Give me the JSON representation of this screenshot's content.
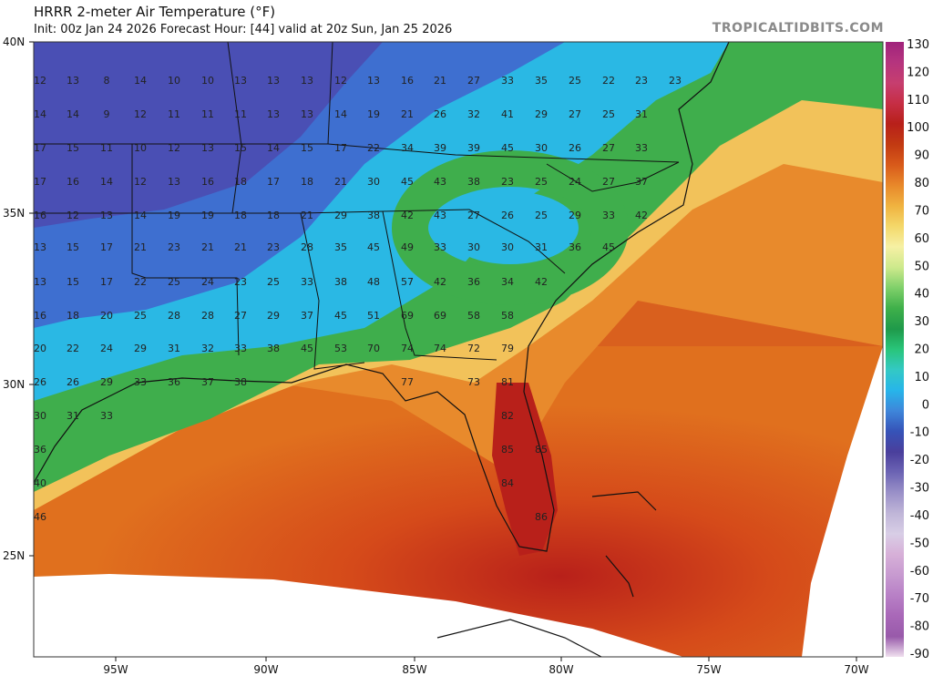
{
  "header": {
    "title": "HRRR 2-meter Air Temperature (°F)",
    "subtitle": "Init: 00z Jan 24 2026   Forecast Hour: [44]   valid at 20z Sun, Jan 25 2026",
    "brand": "TROPICALTIDBITS.COM"
  },
  "axes": {
    "lat_labels": [
      "40N",
      "35N",
      "30N",
      "25N"
    ],
    "lon_labels": [
      "95W",
      "90W",
      "85W",
      "80W",
      "75W",
      "70W"
    ]
  },
  "colorbar": {
    "labels": [
      "130",
      "120",
      "110",
      "100",
      "90",
      "80",
      "70",
      "60",
      "50",
      "40",
      "30",
      "20",
      "10",
      "0",
      "-10",
      "-20",
      "-30",
      "-40",
      "-50",
      "-60",
      "-70",
      "-80",
      "-90"
    ],
    "stops": [
      "#a0237c",
      "#b5347e",
      "#c63e6f",
      "#c62e45",
      "#b8201a",
      "#c23a12",
      "#d85a1a",
      "#e8882a",
      "#f0b340",
      "#f4d86a",
      "#f6f0a4",
      "#cde98c",
      "#7fd06a",
      "#3fb04a",
      "#1f9a4a",
      "#29c57a",
      "#33c9c4",
      "#27b5ea",
      "#3e86da",
      "#3653b8",
      "#4a3f9c",
      "#6c64b4",
      "#9a90c8",
      "#c0b6d8",
      "#d8cee6",
      "#d7b0d8",
      "#c79ad0",
      "#b880c6",
      "#a968b8",
      "#985aaa",
      "#f0e0ef"
    ]
  },
  "station_values": [
    {
      "v": "12"
    },
    {
      "v": "13"
    },
    {
      "v": "8"
    },
    {
      "v": "14"
    },
    {
      "v": "10"
    },
    {
      "v": "10"
    },
    {
      "v": "13"
    },
    {
      "v": "13"
    },
    {
      "v": "13"
    },
    {
      "v": "12"
    },
    {
      "v": "13"
    },
    {
      "v": "16"
    },
    {
      "v": "21"
    },
    {
      "v": "27"
    },
    {
      "v": "33"
    },
    {
      "v": "35"
    },
    {
      "v": "25"
    },
    {
      "v": "22"
    },
    {
      "v": "23"
    },
    {
      "v": "23"
    },
    {
      "v": "14"
    },
    {
      "v": "14"
    },
    {
      "v": "9"
    },
    {
      "v": "12"
    },
    {
      "v": "11"
    },
    {
      "v": "11"
    },
    {
      "v": "11"
    },
    {
      "v": "13"
    },
    {
      "v": "13"
    },
    {
      "v": "14"
    },
    {
      "v": "19"
    },
    {
      "v": "21"
    },
    {
      "v": "26"
    },
    {
      "v": "32"
    },
    {
      "v": "41"
    },
    {
      "v": "29"
    },
    {
      "v": "27"
    },
    {
      "v": "25"
    },
    {
      "v": "31"
    },
    {
      "v": "17"
    },
    {
      "v": "15"
    },
    {
      "v": "11"
    },
    {
      "v": "10"
    },
    {
      "v": "12"
    },
    {
      "v": "13"
    },
    {
      "v": "15"
    },
    {
      "v": "14"
    },
    {
      "v": "15"
    },
    {
      "v": "17"
    },
    {
      "v": "22"
    },
    {
      "v": "34"
    },
    {
      "v": "39"
    },
    {
      "v": "39"
    },
    {
      "v": "45"
    },
    {
      "v": "30"
    },
    {
      "v": "26"
    },
    {
      "v": "27"
    },
    {
      "v": "33"
    },
    {
      "v": "17"
    },
    {
      "v": "16"
    },
    {
      "v": "14"
    },
    {
      "v": "12"
    },
    {
      "v": "13"
    },
    {
      "v": "16"
    },
    {
      "v": "18"
    },
    {
      "v": "17"
    },
    {
      "v": "18"
    },
    {
      "v": "21"
    },
    {
      "v": "30"
    },
    {
      "v": "45"
    },
    {
      "v": "43"
    },
    {
      "v": "38"
    },
    {
      "v": "23"
    },
    {
      "v": "25"
    },
    {
      "v": "24"
    },
    {
      "v": "27"
    },
    {
      "v": "37"
    },
    {
      "v": "16"
    },
    {
      "v": "12"
    },
    {
      "v": "13"
    },
    {
      "v": "14"
    },
    {
      "v": "19"
    },
    {
      "v": "19"
    },
    {
      "v": "18"
    },
    {
      "v": "18"
    },
    {
      "v": "21"
    },
    {
      "v": "29"
    },
    {
      "v": "38"
    },
    {
      "v": "42"
    },
    {
      "v": "43"
    },
    {
      "v": "27"
    },
    {
      "v": "26"
    },
    {
      "v": "25"
    },
    {
      "v": "29"
    },
    {
      "v": "33"
    },
    {
      "v": "42"
    },
    {
      "v": "13"
    },
    {
      "v": "15"
    },
    {
      "v": "17"
    },
    {
      "v": "21"
    },
    {
      "v": "23"
    },
    {
      "v": "21"
    },
    {
      "v": "21"
    },
    {
      "v": "23"
    },
    {
      "v": "28"
    },
    {
      "v": "35"
    },
    {
      "v": "45"
    },
    {
      "v": "49"
    },
    {
      "v": "33"
    },
    {
      "v": "30"
    },
    {
      "v": "30"
    },
    {
      "v": "31"
    },
    {
      "v": "36"
    },
    {
      "v": "45"
    },
    {
      "v": "13"
    },
    {
      "v": "15"
    },
    {
      "v": "17"
    },
    {
      "v": "22"
    },
    {
      "v": "25"
    },
    {
      "v": "24"
    },
    {
      "v": "23"
    },
    {
      "v": "25"
    },
    {
      "v": "33"
    },
    {
      "v": "38"
    },
    {
      "v": "48"
    },
    {
      "v": "57"
    },
    {
      "v": "42"
    },
    {
      "v": "36"
    },
    {
      "v": "34"
    },
    {
      "v": "42"
    },
    {
      "v": "16"
    },
    {
      "v": "18"
    },
    {
      "v": "20"
    },
    {
      "v": "25"
    },
    {
      "v": "28"
    },
    {
      "v": "28"
    },
    {
      "v": "27"
    },
    {
      "v": "29"
    },
    {
      "v": "37"
    },
    {
      "v": "45"
    },
    {
      "v": "51"
    },
    {
      "v": "69"
    },
    {
      "v": "69"
    },
    {
      "v": "58"
    },
    {
      "v": "58"
    },
    {
      "v": "20"
    },
    {
      "v": "22"
    },
    {
      "v": "24"
    },
    {
      "v": "29"
    },
    {
      "v": "31"
    },
    {
      "v": "32"
    },
    {
      "v": "33"
    },
    {
      "v": "38"
    },
    {
      "v": "45"
    },
    {
      "v": "53"
    },
    {
      "v": "70"
    },
    {
      "v": "74"
    },
    {
      "v": "74"
    },
    {
      "v": "72"
    },
    {
      "v": "79"
    },
    {
      "v": "26"
    },
    {
      "v": "26"
    },
    {
      "v": "29"
    },
    {
      "v": "33"
    },
    {
      "v": "36"
    },
    {
      "v": "37"
    },
    {
      "v": "38"
    },
    {
      "v": "77"
    },
    {
      "v": "73"
    },
    {
      "v": "81"
    },
    {
      "v": "30"
    },
    {
      "v": "31"
    },
    {
      "v": "33"
    },
    {
      "v": "82"
    },
    {
      "v": "36"
    },
    {
      "v": "85"
    },
    {
      "v": "85"
    },
    {
      "v": "40"
    },
    {
      "v": "84"
    },
    {
      "v": "46"
    },
    {
      "v": "86"
    }
  ]
}
